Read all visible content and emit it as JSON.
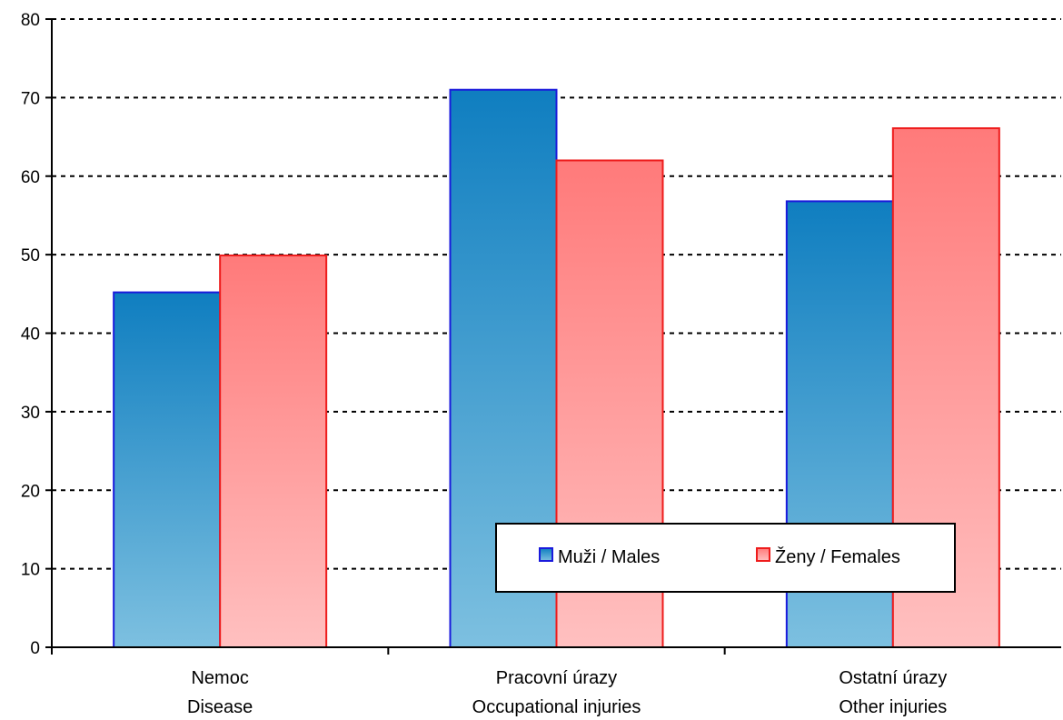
{
  "chart_data": {
    "type": "bar",
    "categories": [
      [
        "Nemoc",
        "Disease"
      ],
      [
        "Pracovní úrazy",
        "Occupational injuries"
      ],
      [
        "Ostatní úrazy",
        "Other injuries"
      ]
    ],
    "series": [
      {
        "name": "Muži / Males",
        "values": [
          45.2,
          71.0,
          56.8
        ],
        "color_top": "#0f7ec0",
        "color_bottom": "#7dc0e0",
        "border": "#1a1adc"
      },
      {
        "name": "Ženy / Females",
        "values": [
          49.9,
          62.0,
          66.1
        ],
        "color_top": "#ff7a7a",
        "color_bottom": "#ffc0c0",
        "border": "#ee1c1c"
      }
    ],
    "y_ticks": [
      "0",
      "10",
      "20",
      "30",
      "40",
      "50",
      "60",
      "70",
      "80"
    ],
    "ylim": [
      0,
      80
    ],
    "grid": "dashed horizontal",
    "legend": "bottom-right",
    "title": "",
    "xlabel": "",
    "ylabel": ""
  }
}
